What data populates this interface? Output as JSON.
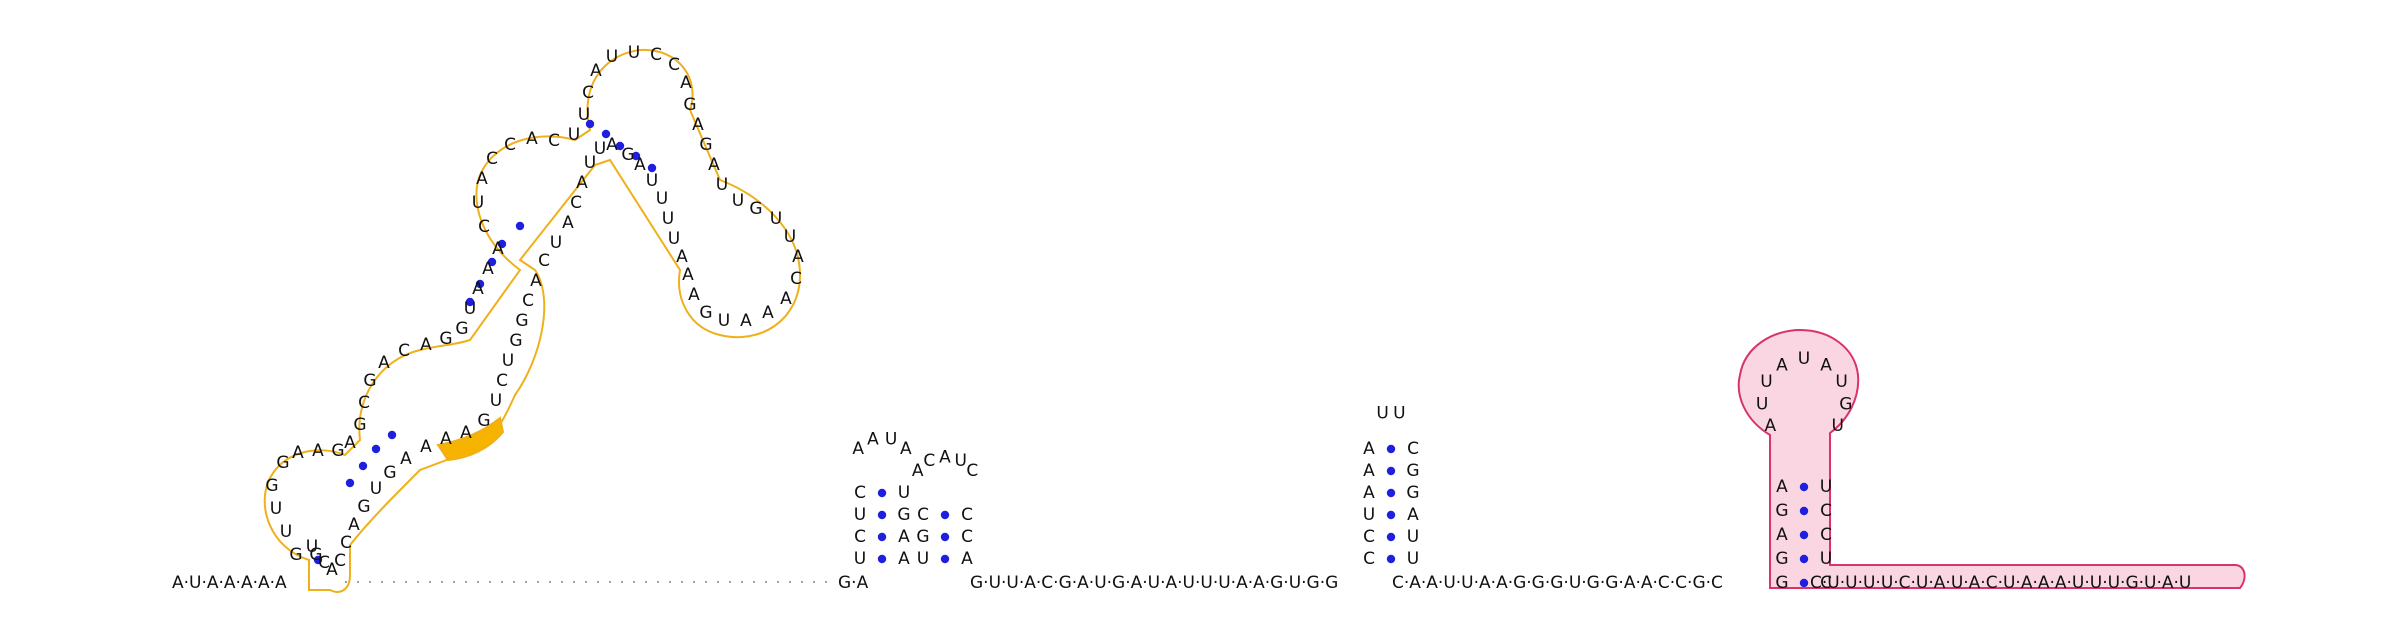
{
  "colors": {
    "pair_dot": "#1f1fe0",
    "backbone": "#444444",
    "region_a_outline": "#f0b01a",
    "region_a_highlight": "#f6b300",
    "region_b_outline": "#d8336a",
    "region_b_fill": "#f9d6e1"
  },
  "baseline": {
    "left_seq": "A·U·A·A·A·A·A",
    "left_pair": [
      "A",
      "U"
    ],
    "unpaired_gap": "",
    "mid_seq_1": "G·A",
    "mid_seq_2": "G·U·U·A·C·G·A·U·G·A·U·A·U·U·U·A·A·G·U·G·G",
    "mid_seq_3": "C·A·A·U·U·A·A·G·G·G·U·G·G·A·A·C·C·G·C",
    "right_tail": "C·U·U·U·U·C·U·A·U·A·C·U·A·A·A·U·U·U·G·U·A·U"
  },
  "hairpin_1": {
    "left_stem": [
      "U",
      "C",
      "U",
      "C"
    ],
    "loop": [
      "A",
      "A",
      "U",
      "A"
    ],
    "right_stem": [
      "A",
      "A",
      "G",
      "U"
    ]
  },
  "hairpin_2": {
    "left_stem": [
      "U",
      "G",
      "C"
    ],
    "loop": [
      "A",
      "C",
      "A",
      "U",
      "C"
    ],
    "right_stem": [
      "A",
      "C",
      "C"
    ]
  },
  "hairpin_3": {
    "left_stem": [
      "C",
      "C",
      "U",
      "A",
      "A",
      "A"
    ],
    "loop": [
      "U",
      "U"
    ],
    "right_stem": [
      "U",
      "U",
      "A",
      "G",
      "G",
      "C"
    ]
  },
  "hairpin_4": {
    "left_stem": [
      "G",
      "G",
      "A",
      "G",
      "A"
    ],
    "loop": [
      "A",
      "U",
      "U",
      "A",
      "U",
      "A",
      "U",
      "G",
      "U"
    ],
    "right_stem": [
      "C",
      "U",
      "C",
      "C",
      "U"
    ]
  },
  "region_a": {
    "labels": [
      "G",
      "U",
      "U",
      "G",
      "G",
      "A",
      "A",
      "G",
      "A",
      "G",
      "C",
      "G",
      "A",
      "C",
      "A",
      "G",
      "G",
      "U",
      "A",
      "A",
      "A",
      "C",
      "U",
      "A",
      "C",
      "C",
      "A",
      "C",
      "U",
      "U",
      "C",
      "A",
      "U",
      "U",
      "C",
      "C",
      "A",
      "G",
      "A",
      "G",
      "A",
      "U",
      "U",
      "G",
      "U",
      "U",
      "A",
      "C",
      "A",
      "A",
      "A",
      "U",
      "G",
      "A",
      "A",
      "A",
      "U",
      "U",
      "U",
      "U",
      "A",
      "G",
      "A",
      "U",
      "U",
      "A",
      "C",
      "A",
      "U",
      "C",
      "A",
      "C",
      "G",
      "G",
      "U",
      "C",
      "U",
      "G",
      "A",
      "A",
      "A",
      "A",
      "G",
      "U",
      "G",
      "A",
      "C",
      "C",
      "A",
      "C",
      "G",
      "U",
      "C"
    ]
  }
}
